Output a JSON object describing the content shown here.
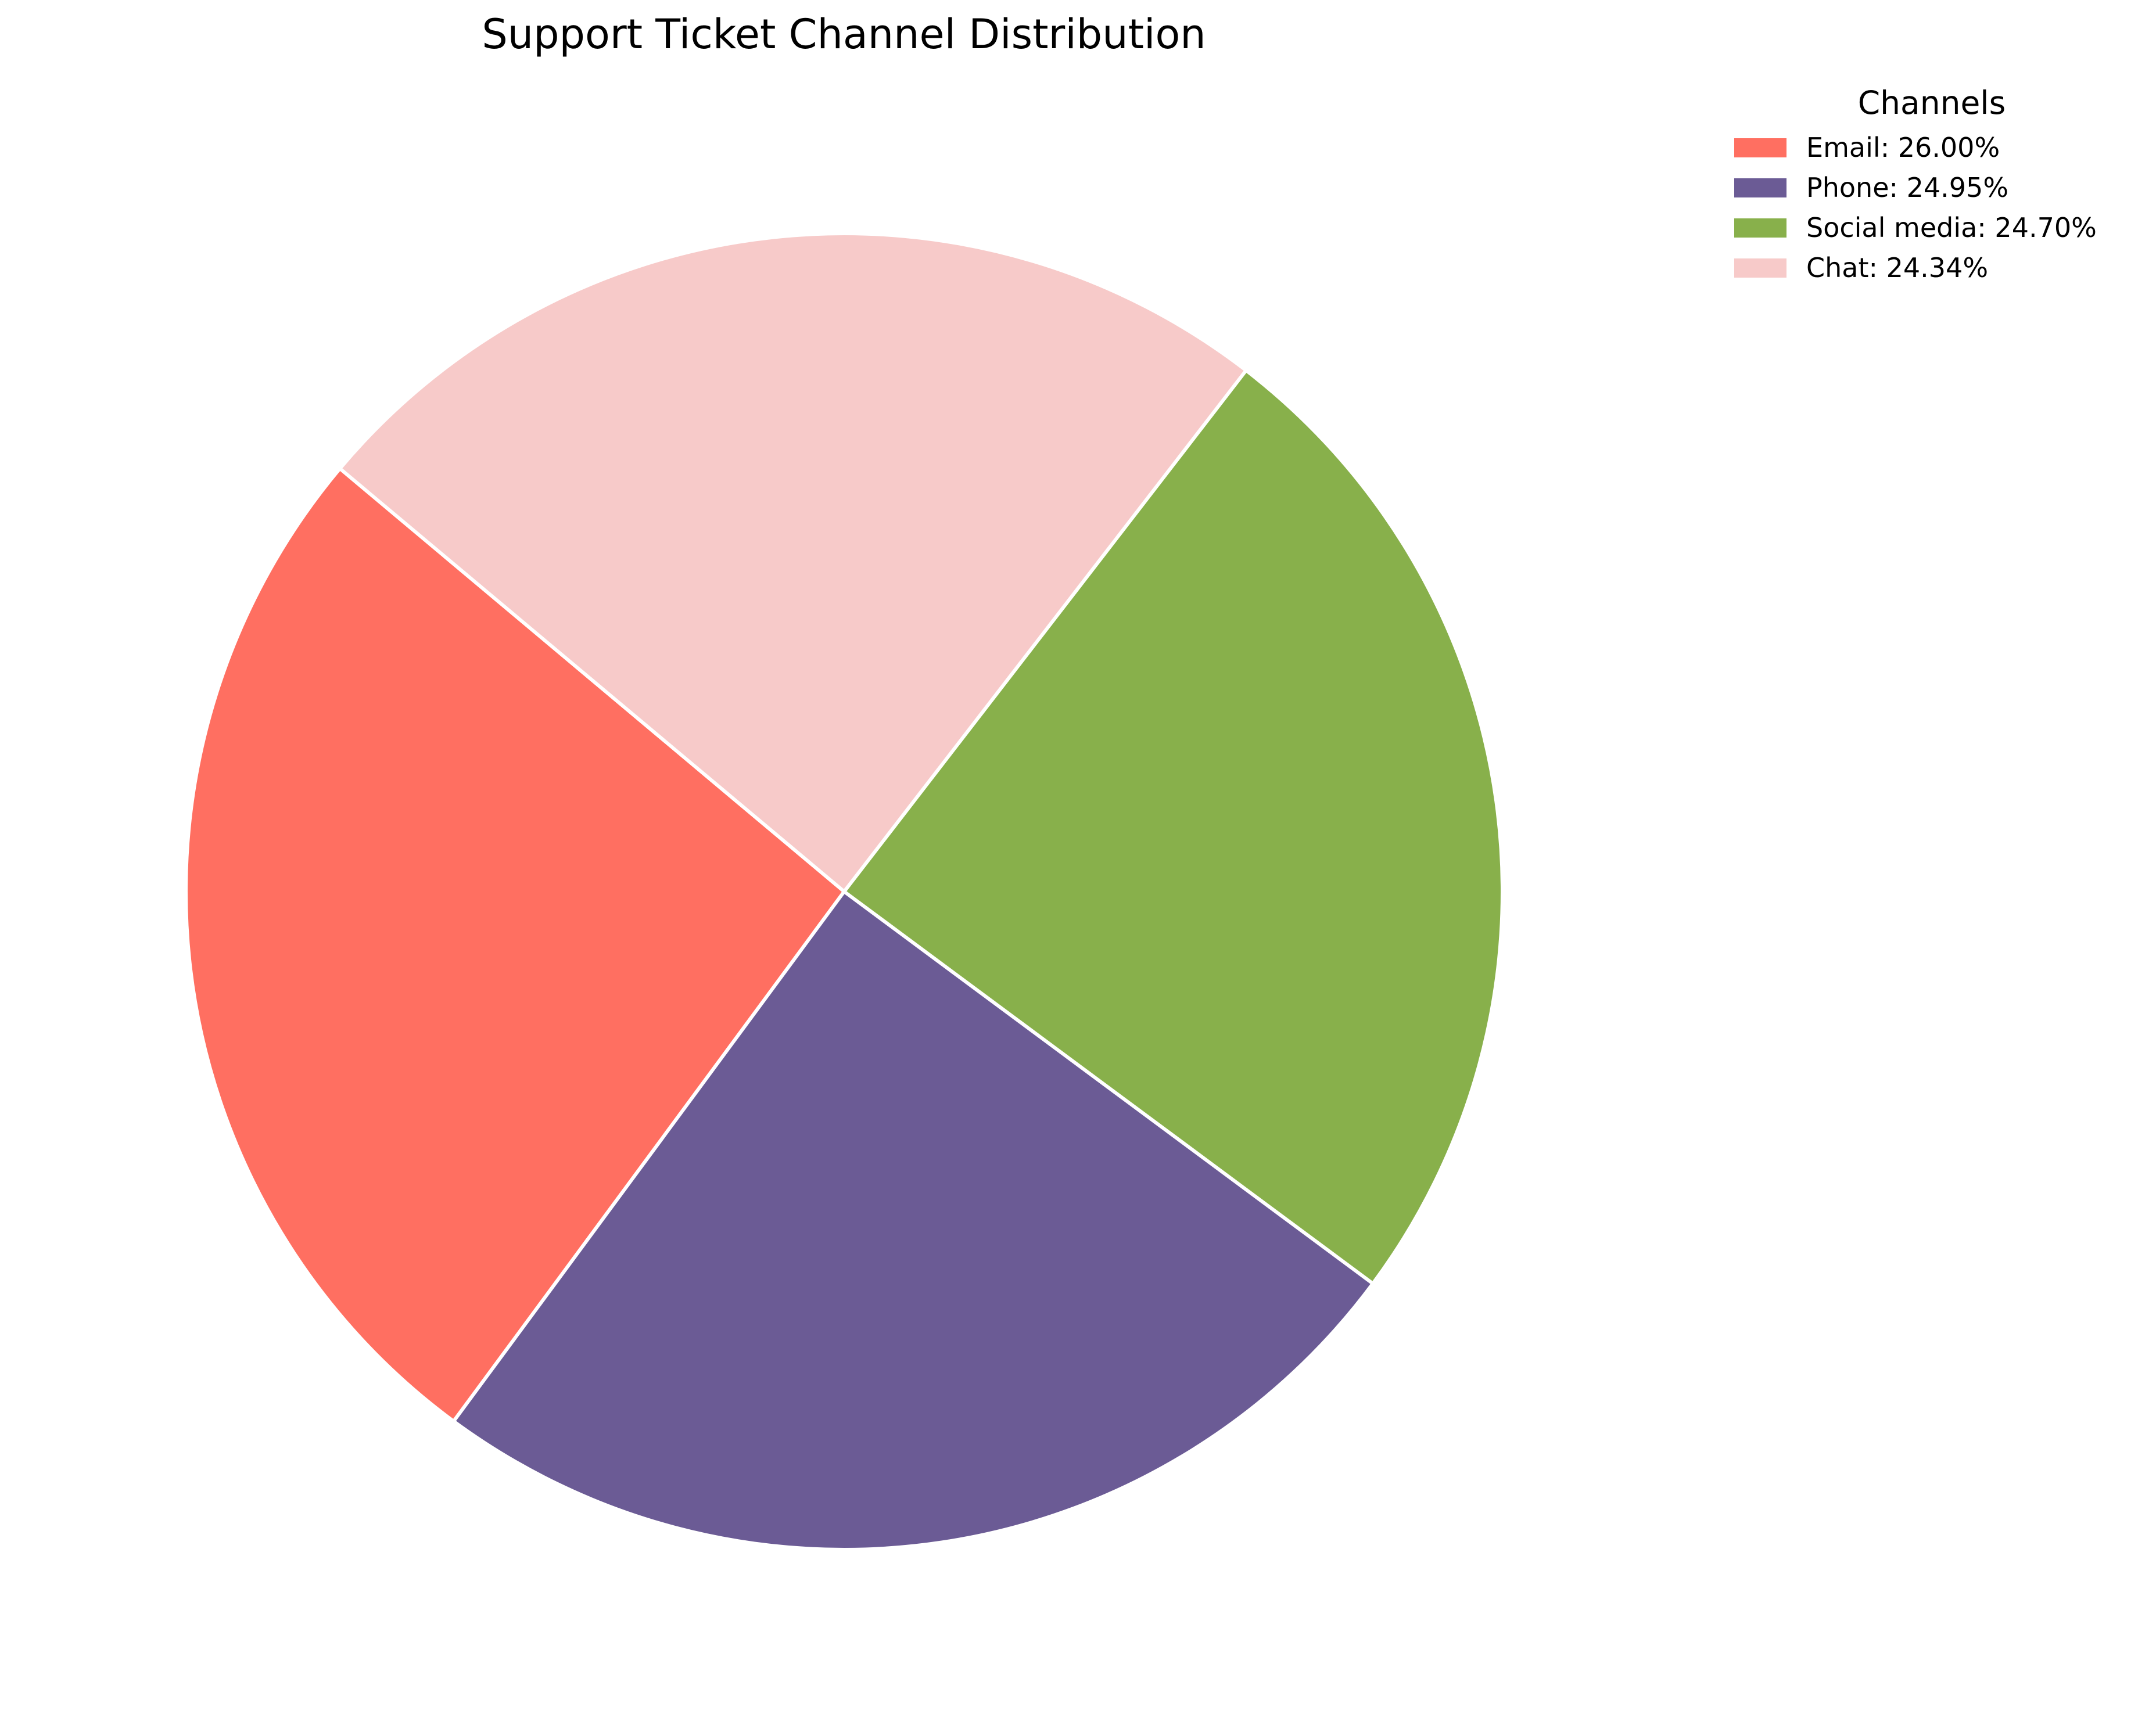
{
  "chart_data": {
    "type": "pie",
    "title": "Support Ticket Channel Distribution",
    "legend_title": "Channels",
    "legend_position": "upper right outside",
    "categories": [
      "Email",
      "Phone",
      "Social media",
      "Chat"
    ],
    "values": [
      26.0,
      24.95,
      24.7,
      24.34
    ],
    "value_labels": [
      "26.00%",
      "24.95%",
      "24.70%",
      "24.34%"
    ],
    "colors": [
      "#ff6f61",
      "#6b5b95",
      "#88b04b",
      "#f7cac9"
    ],
    "edge_color": "#ffffff",
    "start_angle_deg": 140,
    "direction": "counterclockwise"
  }
}
